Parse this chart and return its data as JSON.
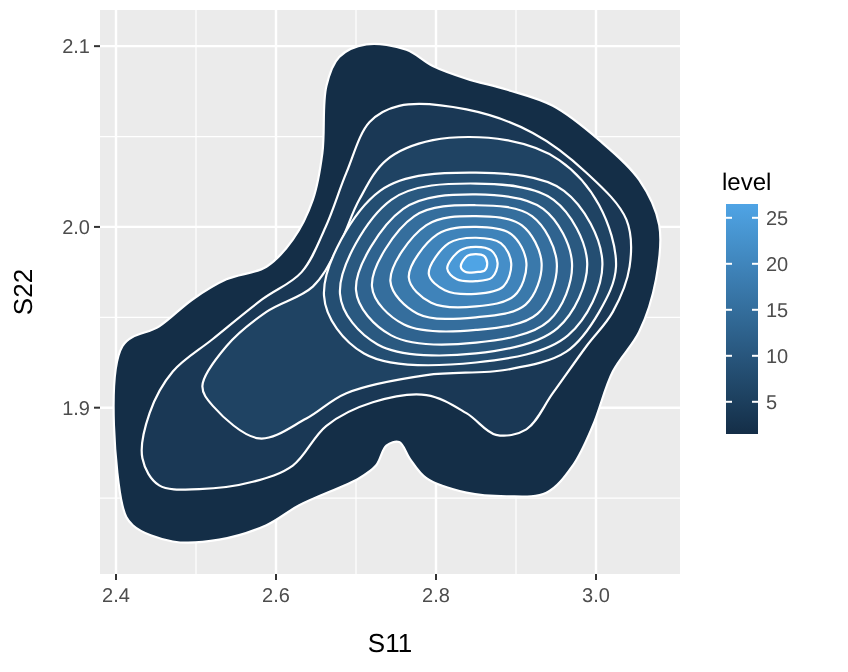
{
  "chart_data": {
    "type": "area",
    "xlabel": "S11",
    "ylabel": "S22",
    "clabel": "level",
    "clim": [
      1.5,
      26.5
    ],
    "cticks": [
      5,
      10,
      15,
      20,
      25
    ],
    "grid": true,
    "xlim": [
      2.38,
      3.105
    ],
    "ylim": [
      1.808,
      2.12
    ],
    "xticks": [
      2.4,
      {
        "value": 2.5,
        "label": null
      },
      2.6,
      {
        "value": 2.7,
        "label": null
      },
      2.8,
      {
        "value": 2.9,
        "label": null
      },
      {
        "value": 3,
        "label": "3.0"
      }
    ],
    "yticks": [
      {
        "value": 1.85,
        "label": null
      },
      1.9,
      {
        "value": 1.95,
        "label": null
      },
      {
        "value": 2,
        "label": "2.0"
      },
      {
        "value": 2.05,
        "label": null
      },
      2.1
    ],
    "series": [
      {
        "color": "#142e47",
        "x": [
          2.663,
          2.679,
          2.713,
          2.763,
          2.796,
          2.838,
          2.888,
          2.946,
          3.004,
          3.054,
          3.079,
          3.075,
          3.054,
          3.021,
          2.996,
          2.971,
          2.938,
          2.888,
          2.838,
          2.788,
          2.767,
          2.754,
          2.738,
          2.725,
          2.704,
          2.629,
          2.588,
          2.529,
          2.471,
          2.421,
          2.408,
          2.408,
          2.454,
          2.496,
          2.538,
          2.588,
          2.621,
          2.646,
          2.658
        ],
        "values": [
          2.078,
          2.094,
          2.101,
          2.098,
          2.089,
          2.082,
          2.076,
          2.067,
          2.048,
          2.026,
          2.001,
          1.971,
          1.942,
          1.92,
          1.89,
          1.868,
          1.853,
          1.851,
          1.853,
          1.861,
          1.872,
          1.881,
          1.879,
          1.868,
          1.861,
          1.846,
          1.835,
          1.827,
          1.826,
          1.835,
          1.846,
          1.934,
          1.945,
          1.96,
          1.971,
          1.978,
          1.993,
          2.015,
          2.041
        ]
      },
      {
        "color": "#1a3855",
        "x": [
          2.717,
          2.754,
          2.838,
          2.921,
          2.988,
          3.038,
          3.042,
          3.021,
          2.988,
          2.946,
          2.913,
          2.875,
          2.838,
          2.788,
          2.721,
          2.663,
          2.621,
          2.571,
          2.504,
          2.454,
          2.433,
          2.442,
          2.471,
          2.521,
          2.583,
          2.632,
          2.662,
          2.688
        ],
        "values": [
          2.058,
          2.067,
          2.065,
          2.052,
          2.03,
          2.004,
          1.978,
          1.953,
          1.934,
          1.908,
          1.888,
          1.885,
          1.897,
          1.907,
          1.903,
          1.89,
          1.868,
          1.859,
          1.855,
          1.857,
          1.872,
          1.897,
          1.92,
          1.938,
          1.96,
          1.975,
          2.0,
          2.03
        ]
      },
      {
        "color": "#1f4363",
        "x": [
          2.521,
          2.579,
          2.638,
          2.688,
          2.788,
          2.888,
          2.963,
          3.004,
          3.025,
          3.004,
          2.954,
          2.888,
          2.796,
          2.738,
          2.704,
          2.679,
          2.646,
          2.588,
          2.538,
          2.508
        ],
        "values": [
          1.901,
          1.883,
          1.894,
          1.908,
          1.918,
          1.921,
          1.931,
          1.953,
          1.978,
          2.012,
          2.037,
          2.048,
          2.048,
          2.037,
          2.015,
          1.99,
          1.967,
          1.953,
          1.934,
          1.912
        ]
      },
      {
        "color": "#244e72",
        "x": [
          3.008,
          2.96,
          2.85,
          2.73,
          2.66,
          2.71,
          2.85,
          2.965
        ],
        "values": [
          1.98,
          2.02,
          2.03,
          2.02,
          1.962,
          1.93,
          1.925,
          1.94
        ]
      },
      {
        "color": "#2a5980",
        "x": [
          2.989,
          2.947,
          2.85,
          2.744,
          2.68,
          2.727,
          2.85,
          2.952
        ],
        "values": [
          1.98,
          2.015,
          2.024,
          2.015,
          1.963,
          1.935,
          1.93,
          1.944
        ]
      },
      {
        "color": "#2f638f",
        "x": [
          2.97,
          2.934,
          2.85,
          2.759,
          2.7,
          2.744,
          2.85,
          2.941
        ],
        "values": [
          1.98,
          2.01,
          2.018,
          2.01,
          1.965,
          1.94,
          1.936,
          1.948
        ]
      },
      {
        "color": "#356e9d",
        "x": [
          2.951,
          2.92,
          2.85,
          2.773,
          2.72,
          2.76,
          2.85,
          2.927
        ],
        "values": [
          1.98,
          2.006,
          2.012,
          2.006,
          1.967,
          1.946,
          1.943,
          1.952
        ]
      },
      {
        "color": "#3a79ab",
        "x": [
          2.932,
          2.907,
          2.85,
          2.788,
          2.743,
          2.777,
          2.85,
          2.912
        ],
        "values": [
          1.98,
          2.001,
          2.006,
          2.001,
          1.97,
          1.952,
          1.95,
          1.957
        ]
      },
      {
        "color": "#3f83ba",
        "x": [
          2.913,
          2.894,
          2.85,
          2.802,
          2.766,
          2.794,
          2.85,
          2.898
        ],
        "values": [
          1.98,
          1.996,
          2.0,
          1.996,
          1.972,
          1.958,
          1.956,
          1.962
        ]
      },
      {
        "color": "#458ec8",
        "x": [
          2.894,
          2.881,
          2.85,
          2.816,
          2.791,
          2.811,
          2.85,
          2.884
        ],
        "values": [
          1.98,
          1.991,
          1.994,
          1.991,
          1.974,
          1.965,
          1.963,
          1.967
        ]
      },
      {
        "color": "#4a99d7",
        "x": [
          2.877,
          2.869,
          2.85,
          2.83,
          2.814,
          2.826,
          2.85,
          2.87
        ],
        "values": [
          1.98,
          1.987,
          1.989,
          1.987,
          1.977,
          1.971,
          1.97,
          1.972
        ]
      },
      {
        "color": "#4fa4e5",
        "x": [
          2.864,
          2.86,
          2.85,
          2.839,
          2.831,
          2.837,
          2.85,
          2.861
        ],
        "values": [
          1.98,
          1.984,
          1.985,
          1.984,
          1.978,
          1.975,
          1.975,
          1.976
        ]
      }
    ]
  }
}
